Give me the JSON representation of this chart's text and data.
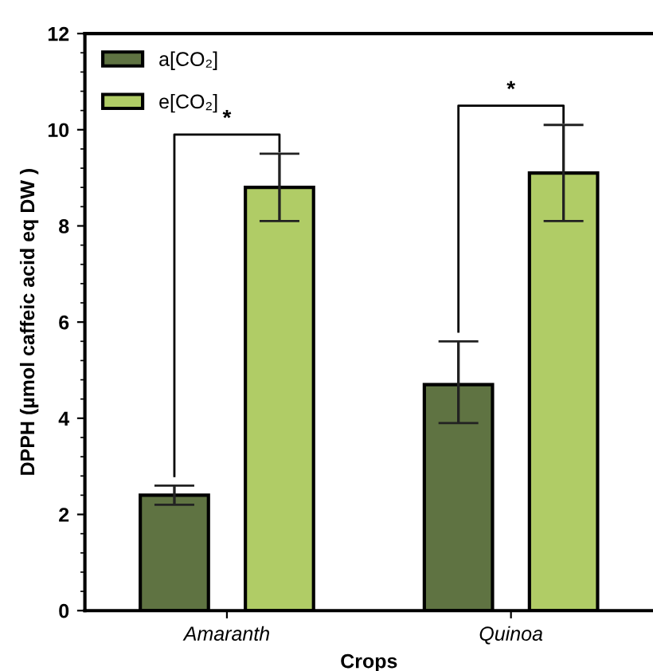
{
  "chart_data": {
    "type": "bar",
    "xlabel": "Crops",
    "ylabel": "DPPH (µmol caffeic acid eq DW )",
    "categories": [
      "Amaranth",
      "Quinoa"
    ],
    "series": [
      {
        "name": "a[CO₂]",
        "color": "#5f7342",
        "values": [
          2.4,
          4.7
        ],
        "errors": [
          [
            2.2,
            2.6
          ],
          [
            3.9,
            5.6
          ]
        ]
      },
      {
        "name": "e[CO₂]",
        "color": "#b0cc66",
        "values": [
          8.8,
          9.1
        ],
        "errors": [
          [
            8.1,
            9.5
          ],
          [
            8.1,
            10.1
          ]
        ]
      }
    ],
    "ylim": [
      0,
      12
    ],
    "yticks": [
      0,
      2,
      4,
      6,
      8,
      10,
      12
    ],
    "grid": false,
    "legend": "top left",
    "annotations": [
      "*",
      "*"
    ]
  }
}
